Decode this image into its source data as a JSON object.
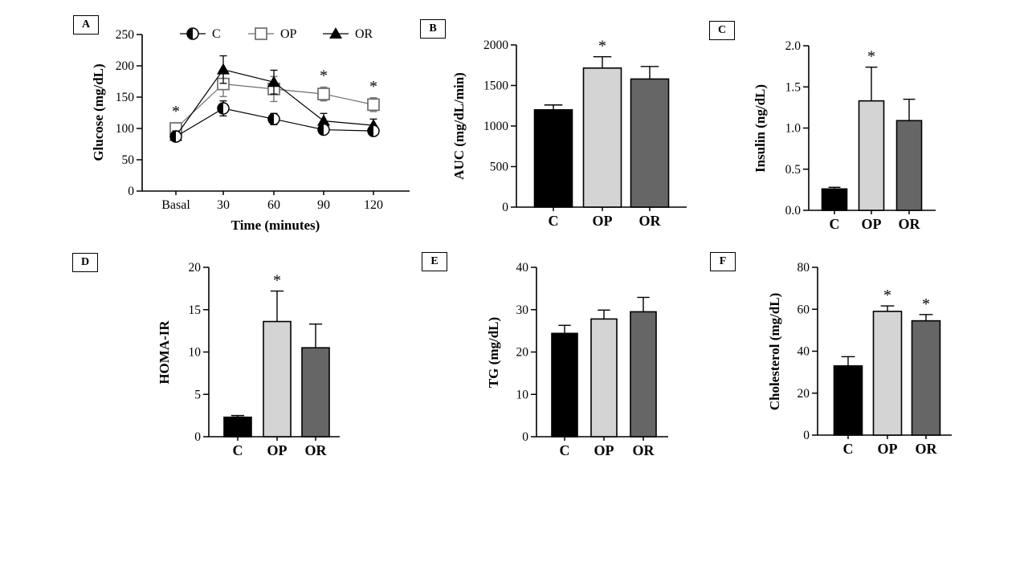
{
  "groups": [
    "C",
    "OP",
    "OR"
  ],
  "group_colors": {
    "C": "#000000",
    "OP": "#d4d4d4",
    "OR": "#666666"
  },
  "panel_labels": [
    "A",
    "B",
    "C",
    "D",
    "E",
    "F"
  ],
  "chart_data": [
    {
      "panel": "A",
      "type": "line",
      "title": "",
      "xlabel": "Time (minutes)",
      "ylabel": "Glucose (mg/dL)",
      "categories": [
        "Basal",
        "30",
        "60",
        "90",
        "120"
      ],
      "ylim": [
        0,
        250
      ],
      "ytick_labels": [
        "0",
        "50",
        "100",
        "150",
        "200",
        "250"
      ],
      "legend_position": "top",
      "grid": false,
      "series": [
        {
          "name": "C",
          "marker": "half-filled-circle",
          "color": "#000000",
          "values": [
            87,
            132,
            115,
            98,
            96
          ],
          "errors": [
            7,
            12,
            9,
            7,
            7
          ]
        },
        {
          "name": "OP",
          "marker": "open-square",
          "color": "#6e6e6e",
          "values": [
            100,
            171,
            163,
            155,
            138
          ],
          "errors": [
            9,
            20,
            20,
            11,
            11
          ]
        },
        {
          "name": "OR",
          "marker": "filled-triangle",
          "color": "#000000",
          "values": [
            88,
            194,
            174,
            112,
            105
          ],
          "errors": [
            8,
            22,
            19,
            12,
            10
          ]
        }
      ],
      "annotations": [
        {
          "text": "*",
          "series": "OP",
          "point": 0
        },
        {
          "text": "*",
          "series": "OP",
          "point": 3
        },
        {
          "text": "*",
          "series": "OP",
          "point": 4
        }
      ]
    },
    {
      "panel": "B",
      "type": "bar",
      "title": "",
      "xlabel": "",
      "ylabel": "AUC (mg/dL/min)",
      "categories": [
        "C",
        "OP",
        "OR"
      ],
      "values": [
        1200,
        1715,
        1580
      ],
      "errors": [
        60,
        140,
        155
      ],
      "sig": [
        false,
        true,
        false
      ],
      "sig_symbol": "*",
      "ylim": [
        0,
        2000
      ],
      "ytick_labels": [
        "0",
        "500",
        "1000",
        "1500",
        "2000"
      ],
      "bar_colors": [
        "#000000",
        "#d4d4d4",
        "#666666"
      ],
      "grid": false
    },
    {
      "panel": "C",
      "type": "bar",
      "title": "",
      "xlabel": "",
      "ylabel": "Insulin (ng/dL)",
      "categories": [
        "C",
        "OP",
        "OR"
      ],
      "values": [
        0.26,
        1.33,
        1.09
      ],
      "errors": [
        0.02,
        0.41,
        0.26
      ],
      "sig": [
        false,
        true,
        false
      ],
      "sig_symbol": "*",
      "ylim": [
        0,
        2.0
      ],
      "ytick_labels": [
        "0.0",
        "0.5",
        "1.0",
        "1.5",
        "2.0"
      ],
      "bar_colors": [
        "#000000",
        "#d4d4d4",
        "#666666"
      ],
      "grid": false
    },
    {
      "panel": "D",
      "type": "bar",
      "title": "",
      "xlabel": "",
      "ylabel": "HOMA-IR",
      "categories": [
        "C",
        "OP",
        "OR"
      ],
      "values": [
        2.3,
        13.6,
        10.5
      ],
      "errors": [
        0.2,
        3.6,
        2.8
      ],
      "sig": [
        false,
        true,
        false
      ],
      "sig_symbol": "*",
      "ylim": [
        0,
        20
      ],
      "ytick_labels": [
        "0",
        "5",
        "10",
        "15",
        "20"
      ],
      "bar_colors": [
        "#000000",
        "#d4d4d4",
        "#666666"
      ],
      "grid": false
    },
    {
      "panel": "E",
      "type": "bar",
      "title": "",
      "xlabel": "",
      "ylabel": "TG (mg/dL)",
      "categories": [
        "C",
        "OP",
        "OR"
      ],
      "values": [
        24.4,
        27.8,
        29.5
      ],
      "errors": [
        1.9,
        2.1,
        3.4
      ],
      "sig": [
        false,
        false,
        false
      ],
      "sig_symbol": "*",
      "ylim": [
        0,
        40
      ],
      "ytick_labels": [
        "0",
        "10",
        "20",
        "30",
        "40"
      ],
      "bar_colors": [
        "#000000",
        "#d4d4d4",
        "#666666"
      ],
      "grid": false
    },
    {
      "panel": "F",
      "type": "bar",
      "title": "",
      "xlabel": "",
      "ylabel": "Cholesterol (mg/dL)",
      "categories": [
        "C",
        "OP",
        "OR"
      ],
      "values": [
        33,
        59,
        54.5
      ],
      "errors": [
        4.4,
        2.6,
        3.0
      ],
      "sig": [
        false,
        true,
        true
      ],
      "sig_symbol": "*",
      "ylim": [
        0,
        80
      ],
      "ytick_labels": [
        "0",
        "20",
        "40",
        "60",
        "80"
      ],
      "bar_colors": [
        "#000000",
        "#d4d4d4",
        "#666666"
      ],
      "grid": false
    }
  ]
}
